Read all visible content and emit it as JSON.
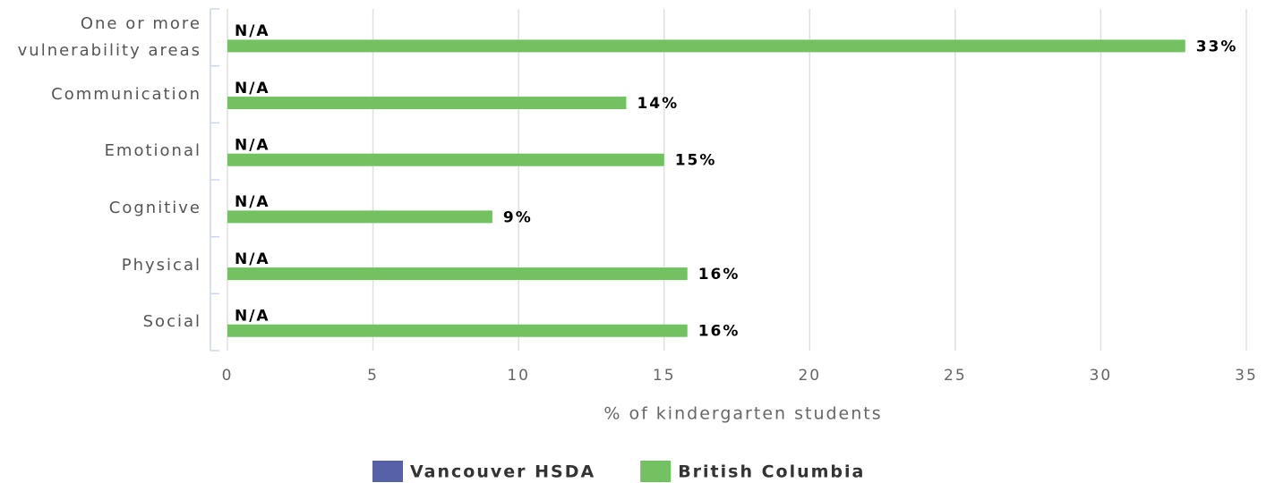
{
  "chart_data": {
    "type": "bar",
    "orientation": "horizontal",
    "categories": [
      "One or more vulnerability areas",
      "Communication",
      "Emotional",
      "Cognitive",
      "Physical",
      "Social"
    ],
    "series": [
      {
        "name": "Vancouver HSDA",
        "color": "#5761a8",
        "values": [
          null,
          null,
          null,
          null,
          null,
          null
        ],
        "value_labels": [
          "N/A",
          "N/A",
          "N/A",
          "N/A",
          "N/A",
          "N/A"
        ]
      },
      {
        "name": "British Columbia",
        "color": "#73c261",
        "values": [
          32.9,
          13.7,
          15,
          9.1,
          15.8,
          15.8
        ],
        "value_labels": [
          "33%",
          "14%",
          "15%",
          "9%",
          "16%",
          "16%"
        ]
      }
    ],
    "xlabel": "% of kindergarten students",
    "xlim": [
      0,
      35
    ],
    "xticks": [
      0,
      5,
      10,
      15,
      20,
      25,
      30,
      35
    ],
    "grid": true,
    "legend": "bottom"
  }
}
